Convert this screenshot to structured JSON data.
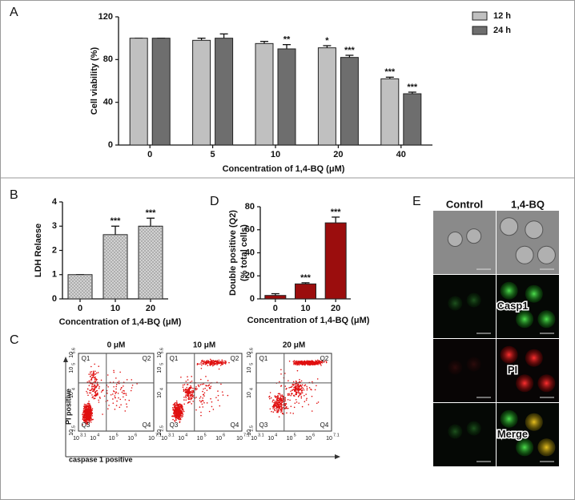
{
  "chart_data": [
    {
      "type": "bar",
      "panel_label": "A",
      "x_label": "Concentration of 1,4-BQ (μM)",
      "y_label": "Cell viability (%)",
      "categories": [
        "0",
        "5",
        "10",
        "20",
        "40"
      ],
      "series": [
        {
          "name": "12 h",
          "color": "#c0c0c0",
          "values": [
            100,
            98,
            95,
            91,
            62
          ],
          "errors": [
            0,
            2,
            2,
            2,
            1.5
          ],
          "significance": [
            null,
            null,
            null,
            "*",
            "***"
          ]
        },
        {
          "name": "24 h",
          "color": "#6e6e6e",
          "values": [
            100,
            100,
            90,
            82,
            48
          ],
          "errors": [
            0,
            4,
            4,
            2,
            1.5
          ],
          "significance": [
            null,
            null,
            "**",
            "***",
            "***"
          ]
        }
      ],
      "ylim": [
        0,
        120
      ],
      "yticks": [
        0,
        40,
        80,
        120
      ],
      "legend": "upper right"
    },
    {
      "type": "bar",
      "panel_label": "B",
      "x_label": "Concentration of 1,4-BQ (μM)",
      "y_label": "LDH Relaese",
      "categories": [
        "0",
        "10",
        "20"
      ],
      "series": [
        {
          "color": "#d2d2d2",
          "pattern": "dots",
          "values": [
            1,
            2.65,
            3.0
          ],
          "errors": [
            0,
            0.35,
            0.33
          ],
          "significance": [
            null,
            "***",
            "***"
          ]
        }
      ],
      "ylim": [
        0,
        4
      ],
      "yticks": [
        0,
        1,
        2,
        3,
        4
      ]
    },
    {
      "type": "bar",
      "panel_label": "D",
      "x_label": "Concentration of 1,4-BQ (μM)",
      "y_label": [
        "Double positive (Q2)",
        "(% total cells)"
      ],
      "categories": [
        "0",
        "10",
        "20"
      ],
      "series": [
        {
          "color": "#9b0d0d",
          "values": [
            3,
            13,
            66
          ],
          "errors": [
            1.5,
            1,
            5
          ],
          "significance": [
            null,
            "***",
            "***"
          ]
        }
      ],
      "ylim": [
        0,
        80
      ],
      "yticks": [
        0,
        20,
        40,
        60,
        80
      ]
    }
  ],
  "flow_cytometry": {
    "panel_label": "C",
    "y_label": "PI positive",
    "x_label": "caspase 1 positive",
    "plots": [
      {
        "title": "0 μM"
      },
      {
        "title": "10 μM"
      },
      {
        "title": "20 μM"
      }
    ],
    "quadrants": [
      "Q1",
      "Q2",
      "Q3",
      "Q4"
    ],
    "tick_base": "10",
    "xtick_exponents": [
      "3.1",
      "4",
      "5",
      "6",
      "7.1"
    ],
    "ytick_exponents": [
      "2.5",
      "4",
      "5",
      "5.6"
    ]
  },
  "microscopy": {
    "panel_label": "E",
    "columns": [
      "Control",
      "1,4-BQ"
    ],
    "rows": [
      null,
      "Casp1",
      "PI",
      "Merge"
    ]
  }
}
